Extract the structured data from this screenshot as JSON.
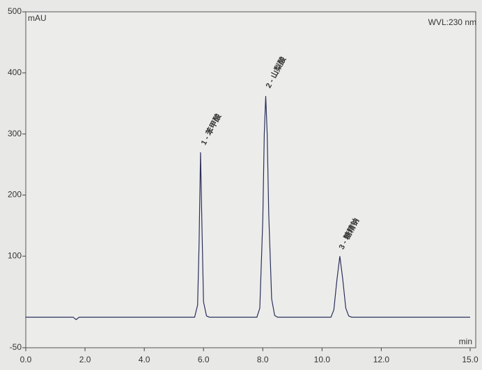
{
  "chart_data": {
    "type": "line",
    "y_axis_label": "mAU",
    "x_axis_label": "min",
    "annotation": "WVL:230 nm",
    "peak_labels": [
      "1 - 苯甲酸",
      "2 - 山梨酸",
      "3 - 糖精钠"
    ],
    "xlim": [
      0,
      15
    ],
    "xticks": [
      {
        "value": 0,
        "label": "0.0"
      },
      {
        "value": 2,
        "label": "2.0"
      },
      {
        "value": 4,
        "label": "4.0"
      },
      {
        "value": 6,
        "label": "6.0"
      },
      {
        "value": 8,
        "label": "8.0"
      },
      {
        "value": 10,
        "label": "10.0"
      },
      {
        "value": 12,
        "label": "12.0"
      },
      {
        "value": 15,
        "label": "15.0"
      }
    ],
    "ylim": [
      -50,
      500
    ],
    "yticks": [
      -50,
      100,
      200,
      300,
      400,
      500
    ],
    "series": [
      {
        "color": "#2a2f5a",
        "x": [
          0,
          1.6,
          1.7,
          1.8,
          5.7,
          5.8,
          5.85,
          5.9,
          5.95,
          6.0,
          6.1,
          6.2,
          7.8,
          7.9,
          8.0,
          8.05,
          8.1,
          8.15,
          8.2,
          8.3,
          8.4,
          8.5,
          10.3,
          10.4,
          10.5,
          10.6,
          10.7,
          10.8,
          10.9,
          11.0,
          15
        ],
        "values": [
          0,
          0,
          -4,
          0,
          0,
          20,
          120,
          270,
          140,
          25,
          2,
          0,
          0,
          15,
          160,
          300,
          362,
          300,
          170,
          30,
          3,
          0,
          0,
          12,
          60,
          100,
          62,
          15,
          2,
          0,
          0
        ]
      }
    ]
  }
}
